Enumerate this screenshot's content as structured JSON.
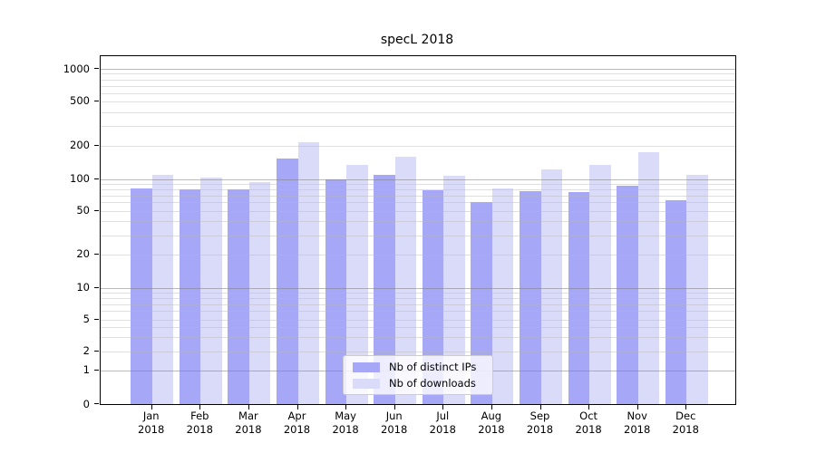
{
  "title": "specL 2018",
  "colors": {
    "ips_bar": "#a7a7f7",
    "downloads_bar": "#dadaf9",
    "grid_major": "rgba(130,130,130,0.55)",
    "grid_minor": "rgba(185,185,185,0.45)",
    "spine": "#000000",
    "legend_border": "#cccccc"
  },
  "legend": {
    "items": [
      {
        "label": "Nb of distinct IPs",
        "series": "ips"
      },
      {
        "label": "Nb of downloads",
        "series": "downloads"
      }
    ]
  },
  "axis": {
    "ytick_values": [
      0,
      1,
      2,
      5,
      10,
      20,
      50,
      100,
      200,
      500,
      1000
    ],
    "log_decade_majors": [
      1,
      10,
      100,
      1000
    ],
    "x_month_labels": [
      "Jan",
      "Feb",
      "Mar",
      "Apr",
      "May",
      "Jun",
      "Jul",
      "Aug",
      "Sep",
      "Oct",
      "Nov",
      "Dec"
    ],
    "x_year_label": "2018"
  },
  "chart_data": {
    "type": "bar",
    "title": "specL 2018",
    "categories": [
      "Jan 2018",
      "Feb 2018",
      "Mar 2018",
      "Apr 2018",
      "May 2018",
      "Jun 2018",
      "Jul 2018",
      "Aug 2018",
      "Sep 2018",
      "Oct 2018",
      "Nov 2018",
      "Dec 2018"
    ],
    "series": [
      {
        "name": "Nb of distinct IPs",
        "color": "#a7a7f7",
        "values": [
          82,
          80,
          79,
          152,
          100,
          108,
          78,
          60,
          76,
          75,
          87,
          63
        ]
      },
      {
        "name": "Nb of downloads",
        "color": "#dadaf9",
        "values": [
          110,
          102,
          94,
          215,
          134,
          160,
          107,
          81,
          122,
          134,
          175,
          110
        ]
      }
    ],
    "xlabel": "",
    "ylabel": "",
    "yscale": "symlog",
    "yticks": [
      0,
      1,
      2,
      5,
      10,
      20,
      50,
      100,
      200,
      500,
      1000
    ],
    "ylim": [
      0,
      1300
    ],
    "grid": true,
    "legend_position": "lower center"
  }
}
